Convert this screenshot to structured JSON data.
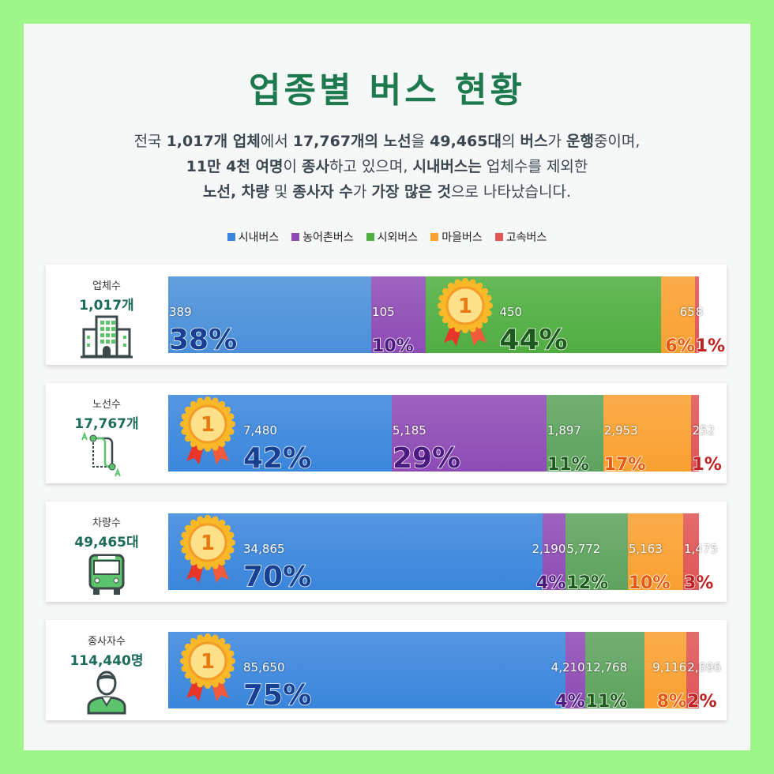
{
  "title": "업종별 버스 현황",
  "subtitle": {
    "line1": [
      [
        "전국 ",
        false
      ],
      [
        "1,017개 업체",
        true
      ],
      [
        "에서 ",
        false
      ],
      [
        "17,767개의 노선",
        true
      ],
      [
        "을 ",
        false
      ],
      [
        "49,465대",
        true
      ],
      [
        "의 ",
        false
      ],
      [
        "버스",
        true
      ],
      [
        "가 ",
        false
      ],
      [
        "운행",
        true
      ],
      [
        "중이며,",
        false
      ]
    ],
    "line2": [
      [
        "11만 4천 여명",
        true
      ],
      [
        "이 ",
        false
      ],
      [
        "종사",
        true
      ],
      [
        "하고 있으며, ",
        false
      ],
      [
        "시내버스는",
        true
      ],
      [
        " 업체수를 제외한",
        false
      ]
    ],
    "line3": [
      [
        "노선, 차량",
        true
      ],
      [
        " 및 ",
        false
      ],
      [
        "종사자 수",
        true
      ],
      [
        "가 ",
        false
      ],
      [
        "가장 많은 것",
        true
      ],
      [
        "으로 나타났습니다.",
        false
      ]
    ]
  },
  "chart_data": {
    "type": "bar",
    "stacked": true,
    "orientation": "horizontal",
    "legend": {
      "placement": "top",
      "entries": [
        "시내버스",
        "농어촌버스",
        "시외버스",
        "마을버스",
        "고속버스"
      ]
    },
    "colors": [
      "#3a86dc",
      "#8e4bb5",
      "#4fae40",
      "#f9a030",
      "#e05555"
    ],
    "pct_colors": [
      "#173f92",
      "#4a1a80",
      "#1d5a1d",
      "#e4590f",
      "#c02020"
    ],
    "rows": [
      {
        "label": "업체수",
        "total": "1,017개",
        "icon": "building-icon",
        "values": [
          389,
          105,
          450,
          65,
          8
        ],
        "value_labels": [
          "389",
          "105",
          "450",
          "65",
          "8"
        ],
        "pct_labels": [
          "38%",
          "10%",
          "44%",
          "6%",
          "1%"
        ],
        "winner": 2
      },
      {
        "label": "노선수",
        "total": "17,767개",
        "icon": "route-icon",
        "values": [
          7480,
          5185,
          1897,
          2953,
          252
        ],
        "value_labels": [
          "7,480",
          "5,185",
          "1,897",
          "2,953",
          "252"
        ],
        "pct_labels": [
          "42%",
          "29%",
          "11%",
          "17%",
          "1%"
        ],
        "winner": 0
      },
      {
        "label": "차량수",
        "total": "49,465대",
        "icon": "bus-icon",
        "values": [
          34865,
          2190,
          5772,
          5163,
          1475
        ],
        "value_labels": [
          "34,865",
          "2,190",
          "5,772",
          "5,163",
          "1,475"
        ],
        "pct_labels": [
          "70%",
          "4%",
          "12%",
          "10%",
          "3%"
        ],
        "winner": 0
      },
      {
        "label": "종사자수",
        "total": "114,440명",
        "icon": "worker-icon",
        "values": [
          85650,
          4210,
          12768,
          9116,
          2696
        ],
        "value_labels": [
          "85,650",
          "4,210",
          "12,768",
          "9,116",
          "2,696"
        ],
        "pct_labels": [
          "75%",
          "4%",
          "11%",
          "8%",
          "2%"
        ],
        "winner": 0
      }
    ],
    "medal_text": "1"
  }
}
